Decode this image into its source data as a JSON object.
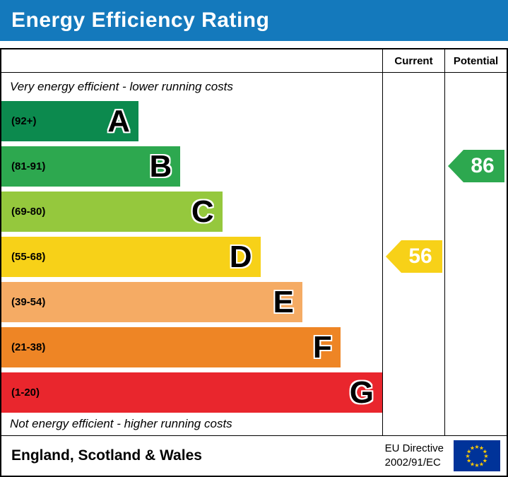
{
  "title": "Energy Efficiency Rating",
  "colors": {
    "title_bg": "#1479bc",
    "title_text": "#ffffff",
    "eu_flag_bg": "#003399",
    "eu_star": "#ffcc00"
  },
  "header": {
    "current": "Current",
    "potential": "Potential"
  },
  "notes": {
    "top": "Very energy efficient - lower running costs",
    "bottom": "Not energy efficient - higher running costs"
  },
  "bands": [
    {
      "letter": "A",
      "range": "(92+)",
      "color": "#0c8a4e",
      "width_pct": 36
    },
    {
      "letter": "B",
      "range": "(81-91)",
      "color": "#2da84f",
      "width_pct": 47
    },
    {
      "letter": "C",
      "range": "(69-80)",
      "color": "#95c83d",
      "width_pct": 58
    },
    {
      "letter": "D",
      "range": "(55-68)",
      "color": "#f7d118",
      "width_pct": 68
    },
    {
      "letter": "E",
      "range": "(39-54)",
      "color": "#f5ab64",
      "width_pct": 79
    },
    {
      "letter": "F",
      "range": "(21-38)",
      "color": "#ee8525",
      "width_pct": 89
    },
    {
      "letter": "G",
      "range": "(1-20)",
      "color": "#e9262d",
      "width_pct": 100
    }
  ],
  "current": {
    "value": "56",
    "color": "#f7d118",
    "band_index": 3,
    "band": "D"
  },
  "potential": {
    "value": "86",
    "color": "#2da84f",
    "band_index": 1,
    "band": "B"
  },
  "footer": {
    "region": "England, Scotland & Wales",
    "directive_line1": "EU Directive",
    "directive_line2": "2002/91/EC"
  },
  "chart_data": {
    "type": "bar",
    "title": "Energy Efficiency Rating",
    "categories": [
      "A (92+)",
      "B (81-91)",
      "C (69-80)",
      "D (55-68)",
      "E (39-54)",
      "F (21-38)",
      "G (1-20)"
    ],
    "values": [
      36,
      47,
      58,
      68,
      79,
      89,
      100
    ],
    "values_meaning": "relative bar length, percent of chart width",
    "band_colors": [
      "#0c8a4e",
      "#2da84f",
      "#95c83d",
      "#f7d118",
      "#f5ab64",
      "#ee8525",
      "#e9262d"
    ],
    "markers": {
      "current": 56,
      "current_band": "D",
      "potential": 86,
      "potential_band": "B"
    },
    "annotations": [
      "Very energy efficient - lower running costs",
      "Not energy efficient - higher running costs"
    ],
    "columns": [
      "Current",
      "Potential"
    ],
    "footer": "England, Scotland & Wales — EU Directive 2002/91/EC",
    "legend_position": "none",
    "grid": false
  }
}
